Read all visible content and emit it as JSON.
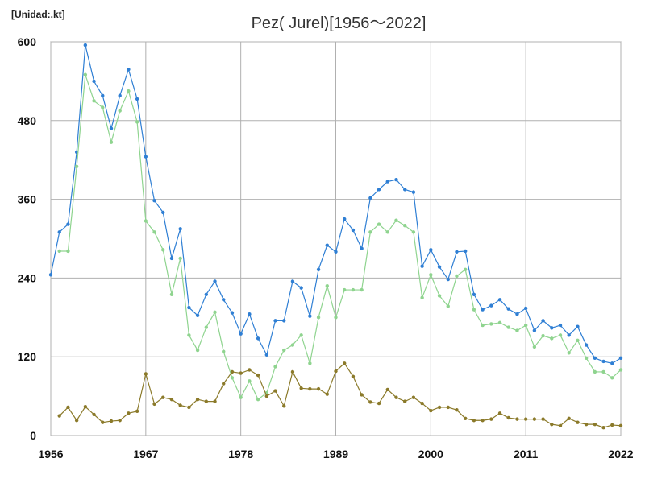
{
  "chart_data": {
    "type": "line",
    "title": "Pez( Jurel)[1956～2022]",
    "unit_label": "[Unidad:.kt]",
    "xlim": [
      1956,
      2022
    ],
    "ylim": [
      0,
      600
    ],
    "x_ticks": [
      "1956",
      "1967",
      "1978",
      "1989",
      "2000",
      "2011",
      "2022"
    ],
    "y_ticks": [
      "0",
      "120",
      "240",
      "360",
      "480",
      "600"
    ],
    "grid": true,
    "colors": {
      "total": "#2f7fd4",
      "series2": "#8fd48f",
      "series3": "#8b7a2a",
      "grid": "#b0b0b0",
      "axis": "#888888"
    },
    "x": [
      1956,
      1957,
      1958,
      1959,
      1960,
      1961,
      1962,
      1963,
      1964,
      1965,
      1966,
      1967,
      1968,
      1969,
      1970,
      1971,
      1972,
      1973,
      1974,
      1975,
      1976,
      1977,
      1978,
      1979,
      1980,
      1981,
      1982,
      1983,
      1984,
      1985,
      1986,
      1987,
      1988,
      1989,
      1990,
      1991,
      1992,
      1993,
      1994,
      1995,
      1996,
      1997,
      1998,
      1999,
      2000,
      2001,
      2002,
      2003,
      2004,
      2005,
      2006,
      2007,
      2008,
      2009,
      2010,
      2011,
      2012,
      2013,
      2014,
      2015,
      2016,
      2017,
      2018,
      2019,
      2020,
      2021,
      2022
    ],
    "series": [
      {
        "values": [
          245,
          310,
          322,
          432,
          595,
          540,
          518,
          468,
          518,
          558,
          513,
          425,
          358,
          340,
          270,
          315,
          195,
          183,
          215,
          235,
          207,
          187,
          155,
          185,
          148,
          123,
          175,
          175,
          235,
          225,
          182,
          253,
          290,
          280,
          330,
          313,
          285,
          362,
          375,
          387,
          390,
          375,
          371,
          258,
          283,
          257,
          238,
          280,
          281,
          215,
          192,
          198,
          207,
          193,
          185,
          194,
          160,
          175,
          164,
          168,
          153,
          166,
          138,
          118,
          113,
          110,
          118
        ]
      },
      {
        "values": [
          null,
          281,
          281,
          410,
          550,
          510,
          500,
          447,
          495,
          525,
          478,
          327,
          310,
          283,
          215,
          270,
          153,
          130,
          165,
          188,
          128,
          88,
          58,
          83,
          55,
          65,
          105,
          130,
          138,
          153,
          110,
          180,
          228,
          180,
          222,
          222,
          222,
          310,
          322,
          310,
          328,
          320,
          310,
          210,
          245,
          213,
          197,
          243,
          253,
          192,
          168,
          170,
          172,
          165,
          160,
          168,
          135,
          152,
          148,
          153,
          126,
          145,
          118,
          97,
          97,
          88,
          100
        ]
      },
      {
        "values": [
          null,
          30,
          43,
          23,
          44,
          32,
          20,
          22,
          23,
          34,
          37,
          94,
          48,
          58,
          55,
          46,
          43,
          55,
          52,
          52,
          79,
          97,
          95,
          100,
          92,
          60,
          68,
          45,
          97,
          72,
          71,
          71,
          63,
          98,
          110,
          90,
          62,
          51,
          49,
          70,
          58,
          52,
          58,
          49,
          38,
          43,
          43,
          39,
          26,
          23,
          23,
          25,
          34,
          27,
          25,
          25,
          25,
          25,
          17,
          15,
          26,
          20,
          17,
          17,
          12,
          16,
          15
        ]
      }
    ]
  }
}
